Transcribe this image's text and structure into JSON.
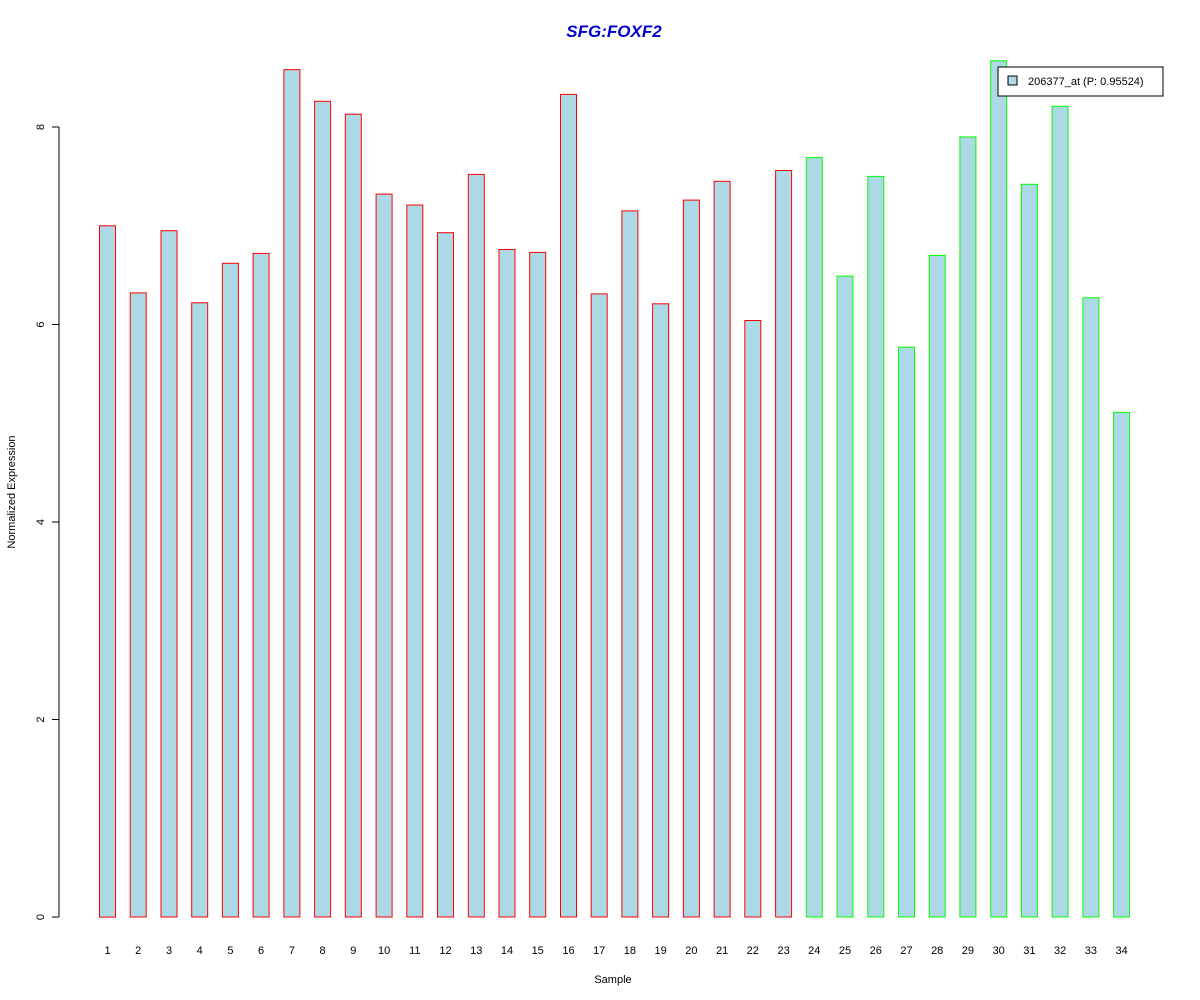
{
  "colors": {
    "title": "#0000CC",
    "bar_fill": "#ADD8E6",
    "group1_border": "#FF0000",
    "group2_border": "#00FF00",
    "axis": "#000000",
    "background": "#FFFFFF"
  },
  "chart_data": {
    "type": "bar",
    "title": "SFG:FOXF2",
    "xlabel": "Sample",
    "ylabel": "Normalized Expression",
    "ylim": [
      0,
      8
    ],
    "yticks": [
      0,
      2,
      4,
      6,
      8
    ],
    "grid": false,
    "legend": {
      "placement": "top-right",
      "entries": [
        "206377_at (P: 0.95524)"
      ]
    },
    "categories": [
      "1",
      "2",
      "3",
      "4",
      "5",
      "6",
      "7",
      "8",
      "9",
      "10",
      "11",
      "12",
      "13",
      "14",
      "15",
      "16",
      "17",
      "18",
      "19",
      "20",
      "21",
      "22",
      "23",
      "24",
      "25",
      "26",
      "27",
      "28",
      "29",
      "30",
      "31",
      "32",
      "33",
      "34"
    ],
    "series": [
      {
        "name": "206377_at (P: 0.95524)",
        "values": [
          7.0,
          6.32,
          6.95,
          6.22,
          6.62,
          6.72,
          8.58,
          8.26,
          8.13,
          7.32,
          7.21,
          6.93,
          7.52,
          6.76,
          6.73,
          8.33,
          6.31,
          7.15,
          6.21,
          7.26,
          7.45,
          6.04,
          7.56,
          7.69,
          6.49,
          7.5,
          5.77,
          6.7,
          7.9,
          8.67,
          7.42,
          8.21,
          6.27,
          5.11
        ],
        "group": [
          1,
          1,
          1,
          1,
          1,
          1,
          1,
          1,
          1,
          1,
          1,
          1,
          1,
          1,
          1,
          1,
          1,
          1,
          1,
          1,
          1,
          1,
          1,
          2,
          2,
          2,
          2,
          2,
          2,
          2,
          2,
          2,
          2,
          2
        ]
      }
    ]
  }
}
